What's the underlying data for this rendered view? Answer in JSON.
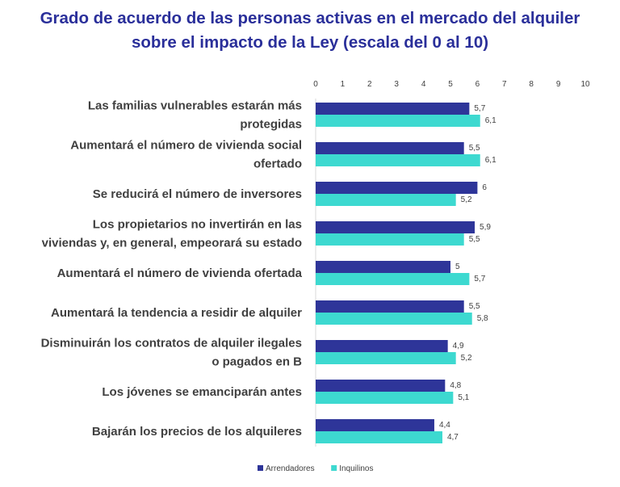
{
  "chart_data": {
    "type": "bar",
    "orientation": "horizontal",
    "title_lines": [
      "Grado de acuerdo de las personas activas en el mercado del alquiler",
      "sobre el impacto de la Ley (escala del 0 al 10)"
    ],
    "xlim": [
      0,
      10
    ],
    "xticks": [
      "0",
      "1",
      "2",
      "3",
      "4",
      "5",
      "6",
      "7",
      "8",
      "9",
      "10"
    ],
    "categories": [
      [
        "Las familias vulnerables estarán más",
        "protegidas"
      ],
      [
        "Aumentará el número de vivienda social",
        "ofertado"
      ],
      [
        "Se reducirá el número de inversores"
      ],
      [
        "Los propietarios no invertirán en las",
        "viviendas y, en general, empeorará su estado"
      ],
      [
        "Aumentará el número de vivienda ofertada"
      ],
      [
        "Aumentará la tendencia a residir de alquiler"
      ],
      [
        "Disminuirán los contratos de alquiler ilegales",
        "o pagados en B"
      ],
      [
        "Los jóvenes se emanciparán antes"
      ],
      [
        "Bajarán los precios de los alquileres"
      ]
    ],
    "series": [
      {
        "name": "Arrendadores",
        "color": "#2e3599",
        "values": [
          5.7,
          5.5,
          6,
          5.9,
          5,
          5.5,
          4.9,
          4.8,
          4.4
        ],
        "labels": [
          "5,7",
          "5,5",
          "6",
          "5,9",
          "5",
          "5,5",
          "4,9",
          "4,8",
          "4,4"
        ]
      },
      {
        "name": "Inquilinos",
        "color": "#3dd9d0",
        "values": [
          6.1,
          6.1,
          5.2,
          5.5,
          5.7,
          5.8,
          5.2,
          5.1,
          4.7
        ],
        "labels": [
          "6,1",
          "6,1",
          "5,2",
          "5,5",
          "5,7",
          "5,8",
          "5,2",
          "5,1",
          "4,7"
        ]
      }
    ],
    "legend_position": "bottom-center"
  }
}
